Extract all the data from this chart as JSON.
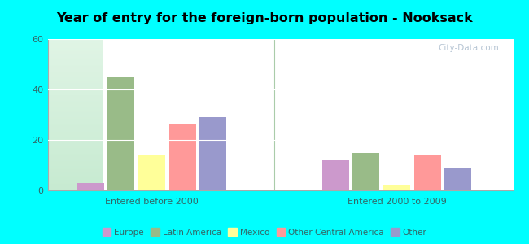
{
  "title": "Year of entry for the foreign-born population - Nooksack",
  "groups": [
    "Entered before 2000",
    "Entered 2000 to 2009"
  ],
  "categories": [
    "Europe",
    "Latin America",
    "Mexico",
    "Other Central America",
    "Other"
  ],
  "colors": [
    "#cc99cc",
    "#99bb88",
    "#ffff99",
    "#ff9999",
    "#9999cc"
  ],
  "values_before": [
    3,
    45,
    14,
    26,
    29
  ],
  "values_after": [
    12,
    15,
    2,
    14,
    9
  ],
  "ylim": [
    0,
    60
  ],
  "yticks": [
    0,
    20,
    40,
    60
  ],
  "bg_color": "#00ffff",
  "watermark": "City-Data.com",
  "group_label_color": "#336666",
  "tick_color": "#336666"
}
